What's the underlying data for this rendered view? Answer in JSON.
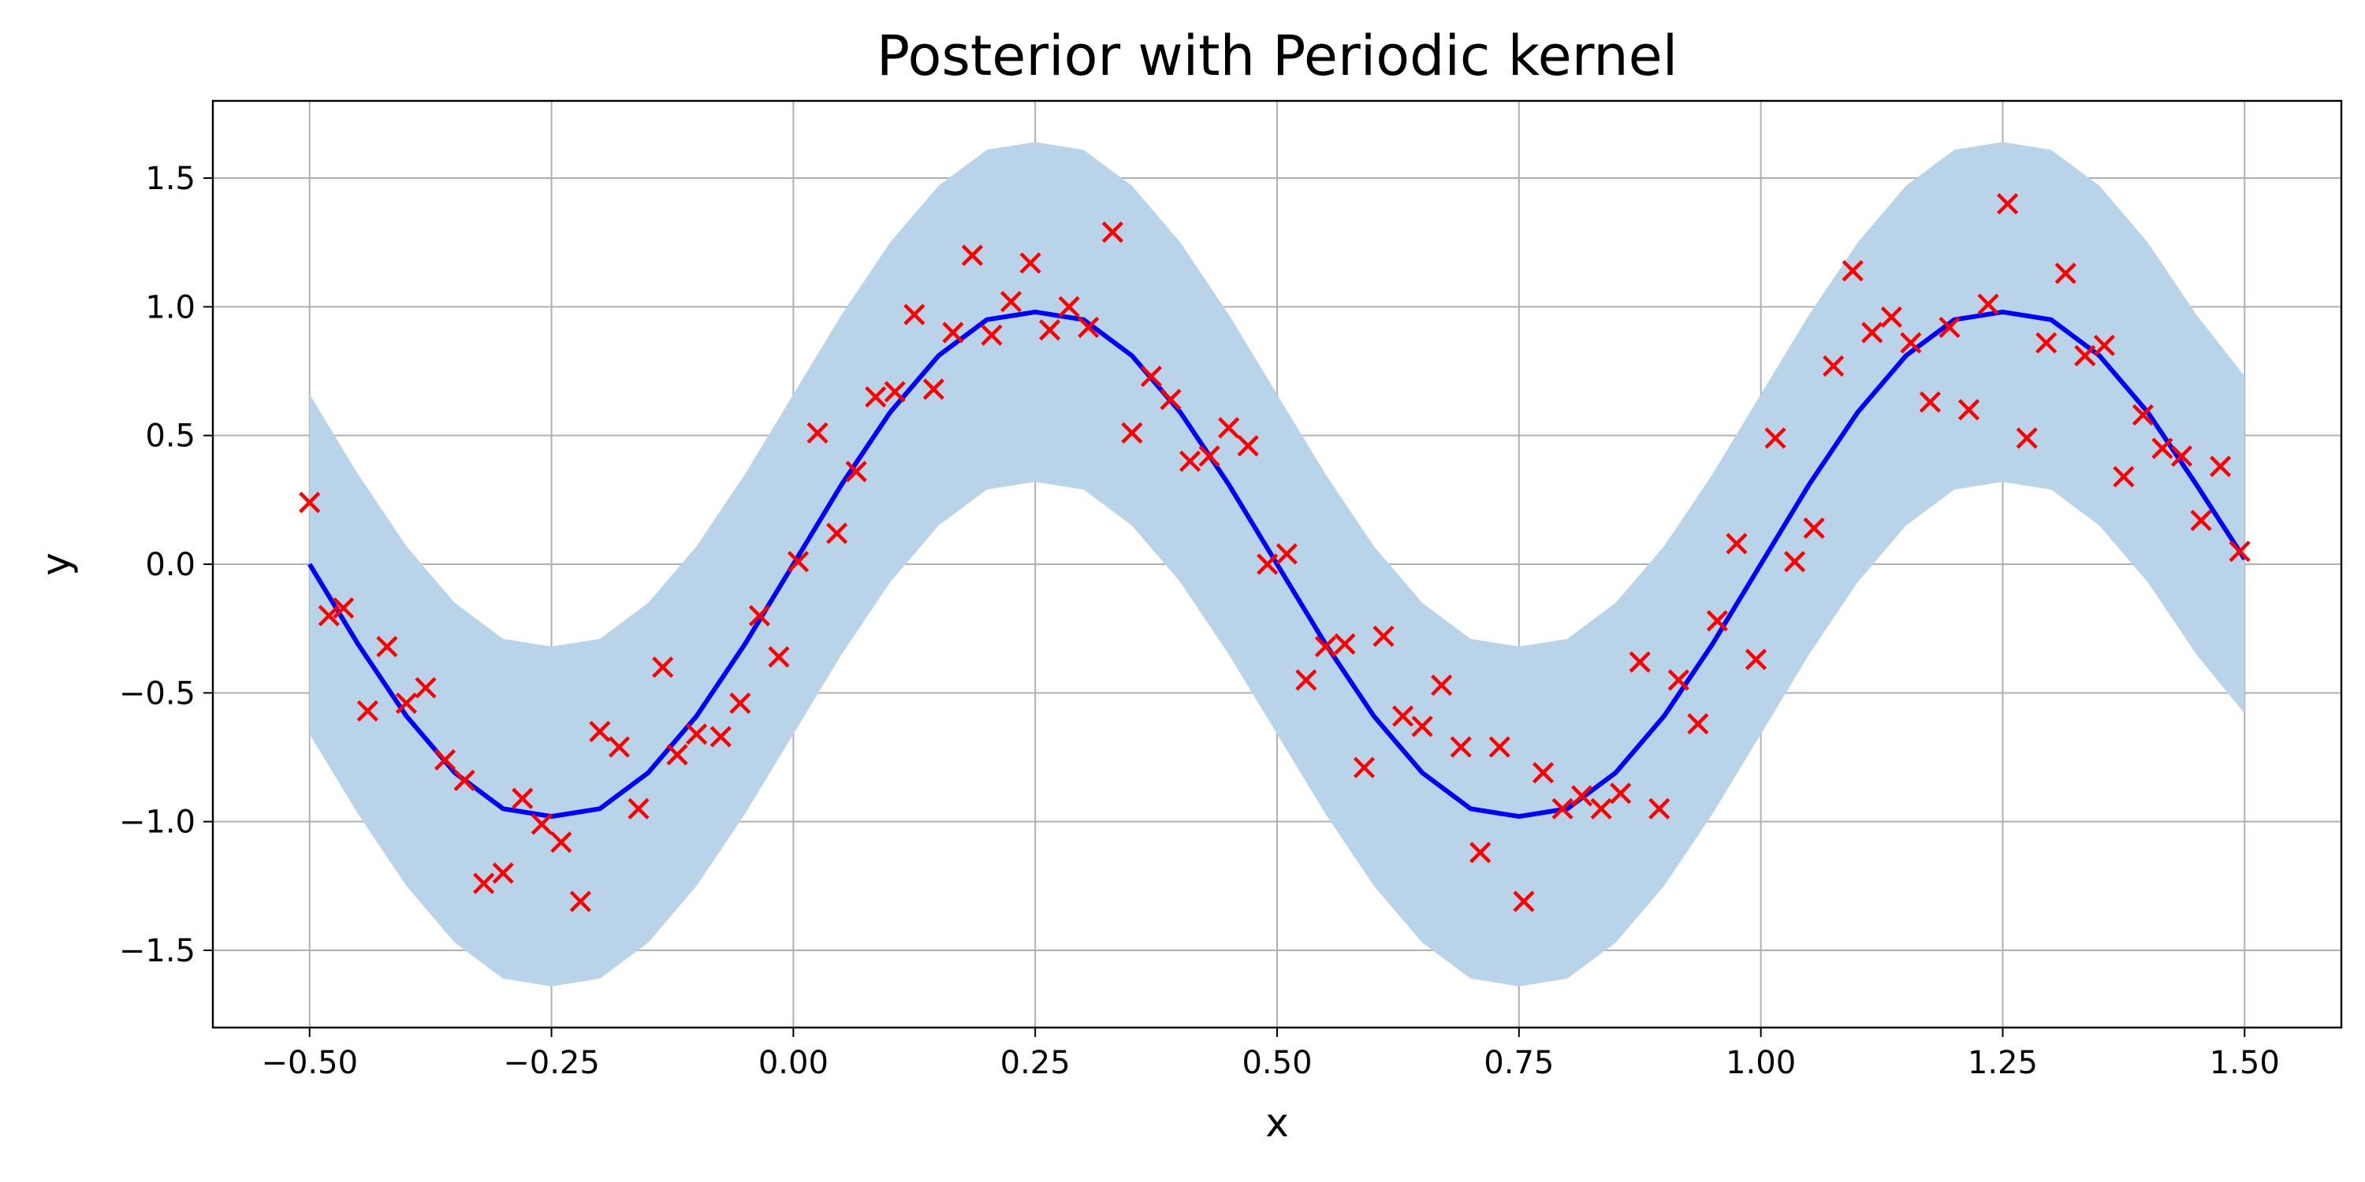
{
  "chart_data": {
    "type": "line",
    "title": "Posterior with Periodic kernel",
    "xlabel": "x",
    "ylabel": "y",
    "xlim": [
      -0.6,
      1.6
    ],
    "ylim": [
      -1.8,
      1.8
    ],
    "xticks": [
      -0.5,
      -0.25,
      0.0,
      0.25,
      0.5,
      0.75,
      1.0,
      1.25,
      1.5
    ],
    "xtick_labels": [
      "−0.50",
      "−0.25",
      "0.00",
      "0.25",
      "0.50",
      "0.75",
      "1.00",
      "1.25",
      "1.50"
    ],
    "yticks": [
      -1.5,
      -1.0,
      -0.5,
      0.0,
      0.5,
      1.0,
      1.5
    ],
    "ytick_labels": [
      "−1.5",
      "−1.0",
      "−0.5",
      "0.0",
      "0.5",
      "1.0",
      "1.5"
    ],
    "grid": true,
    "colors": {
      "mean_line": "#0000ff",
      "band": "#b9d4e8",
      "points": "#ff0000",
      "grid": "#b0b0b0"
    },
    "series": [
      {
        "kind": "line",
        "x": [
          -0.5,
          -0.45,
          -0.4,
          -0.35,
          -0.3,
          -0.25,
          -0.2,
          -0.15,
          -0.1,
          -0.05,
          0.0,
          0.05,
          0.1,
          0.15,
          0.2,
          0.25,
          0.3,
          0.35,
          0.4,
          0.45,
          0.5,
          0.55,
          0.6,
          0.65,
          0.7,
          0.75,
          0.8,
          0.85,
          0.9,
          0.95,
          1.0,
          1.05,
          1.1,
          1.15,
          1.2,
          1.25,
          1.3,
          1.35,
          1.4,
          1.45,
          1.5
        ],
        "y": [
          0.0,
          -0.31,
          -0.59,
          -0.81,
          -0.95,
          -0.98,
          -0.95,
          -0.81,
          -0.59,
          -0.31,
          0.0,
          0.31,
          0.59,
          0.81,
          0.95,
          0.98,
          0.95,
          0.81,
          0.59,
          0.31,
          0.0,
          -0.31,
          -0.59,
          -0.81,
          -0.95,
          -0.98,
          -0.95,
          -0.81,
          -0.59,
          -0.31,
          0.0,
          0.31,
          0.59,
          0.81,
          0.95,
          0.98,
          0.95,
          0.81,
          0.59,
          0.31,
          0.02
        ]
      },
      {
        "kind": "band",
        "x": [
          -0.5,
          -0.45,
          -0.4,
          -0.35,
          -0.3,
          -0.25,
          -0.2,
          -0.15,
          -0.1,
          -0.05,
          0.0,
          0.05,
          0.1,
          0.15,
          0.2,
          0.25,
          0.3,
          0.35,
          0.4,
          0.45,
          0.5,
          0.55,
          0.6,
          0.65,
          0.7,
          0.75,
          0.8,
          0.85,
          0.9,
          0.95,
          1.0,
          1.05,
          1.1,
          1.15,
          1.2,
          1.25,
          1.3,
          1.35,
          1.4,
          1.45,
          1.5
        ],
        "lower": [
          -0.66,
          -0.97,
          -1.25,
          -1.47,
          -1.61,
          -1.64,
          -1.61,
          -1.47,
          -1.25,
          -0.97,
          -0.66,
          -0.35,
          -0.07,
          0.15,
          0.29,
          0.32,
          0.29,
          0.15,
          -0.07,
          -0.35,
          -0.66,
          -0.97,
          -1.25,
          -1.47,
          -1.61,
          -1.64,
          -1.61,
          -1.47,
          -1.25,
          -0.97,
          -0.66,
          -0.35,
          -0.07,
          0.15,
          0.29,
          0.32,
          0.29,
          0.15,
          -0.07,
          -0.35,
          -0.58
        ],
        "upper": [
          0.66,
          0.35,
          0.07,
          -0.15,
          -0.29,
          -0.32,
          -0.29,
          -0.15,
          0.07,
          0.35,
          0.66,
          0.97,
          1.25,
          1.47,
          1.61,
          1.64,
          1.61,
          1.47,
          1.25,
          0.97,
          0.66,
          0.35,
          0.07,
          -0.15,
          -0.29,
          -0.32,
          -0.29,
          -0.15,
          0.07,
          0.35,
          0.66,
          0.97,
          1.25,
          1.47,
          1.61,
          1.64,
          1.61,
          1.47,
          1.25,
          0.97,
          0.73
        ]
      },
      {
        "kind": "scatter",
        "points": [
          [
            -0.5,
            0.24
          ],
          [
            -0.48,
            -0.2
          ],
          [
            -0.465,
            -0.17
          ],
          [
            -0.44,
            -0.57
          ],
          [
            -0.42,
            -0.32
          ],
          [
            -0.4,
            -0.54
          ],
          [
            -0.38,
            -0.48
          ],
          [
            -0.36,
            -0.76
          ],
          [
            -0.34,
            -0.84
          ],
          [
            -0.32,
            -1.24
          ],
          [
            -0.3,
            -1.2
          ],
          [
            -0.28,
            -0.91
          ],
          [
            -0.26,
            -1.01
          ],
          [
            -0.24,
            -1.08
          ],
          [
            -0.22,
            -1.31
          ],
          [
            -0.2,
            -0.65
          ],
          [
            -0.18,
            -0.71
          ],
          [
            -0.16,
            -0.95
          ],
          [
            -0.135,
            -0.4
          ],
          [
            -0.12,
            -0.74
          ],
          [
            -0.1,
            -0.66
          ],
          [
            -0.075,
            -0.67
          ],
          [
            -0.055,
            -0.54
          ],
          [
            -0.035,
            -0.2
          ],
          [
            -0.015,
            -0.36
          ],
          [
            0.005,
            0.01
          ],
          [
            0.025,
            0.51
          ],
          [
            0.045,
            0.12
          ],
          [
            0.065,
            0.36
          ],
          [
            0.085,
            0.65
          ],
          [
            0.105,
            0.67
          ],
          [
            0.125,
            0.97
          ],
          [
            0.145,
            0.68
          ],
          [
            0.165,
            0.9
          ],
          [
            0.185,
            1.2
          ],
          [
            0.205,
            0.89
          ],
          [
            0.225,
            1.02
          ],
          [
            0.245,
            1.17
          ],
          [
            0.265,
            0.91
          ],
          [
            0.285,
            1.0
          ],
          [
            0.305,
            0.92
          ],
          [
            0.33,
            1.29
          ],
          [
            0.35,
            0.51
          ],
          [
            0.37,
            0.73
          ],
          [
            0.39,
            0.64
          ],
          [
            0.41,
            0.4
          ],
          [
            0.43,
            0.42
          ],
          [
            0.45,
            0.53
          ],
          [
            0.47,
            0.46
          ],
          [
            0.49,
            0.0
          ],
          [
            0.51,
            0.04
          ],
          [
            0.53,
            -0.45
          ],
          [
            0.55,
            -0.32
          ],
          [
            0.57,
            -0.31
          ],
          [
            0.59,
            -0.79
          ],
          [
            0.61,
            -0.28
          ],
          [
            0.63,
            -0.59
          ],
          [
            0.65,
            -0.63
          ],
          [
            0.67,
            -0.47
          ],
          [
            0.69,
            -0.71
          ],
          [
            0.71,
            -1.12
          ],
          [
            0.73,
            -0.71
          ],
          [
            0.755,
            -1.31
          ],
          [
            0.775,
            -0.81
          ],
          [
            0.795,
            -0.95
          ],
          [
            0.815,
            -0.9
          ],
          [
            0.835,
            -0.95
          ],
          [
            0.855,
            -0.89
          ],
          [
            0.875,
            -0.38
          ],
          [
            0.895,
            -0.95
          ],
          [
            0.915,
            -0.45
          ],
          [
            0.935,
            -0.62
          ],
          [
            0.955,
            -0.22
          ],
          [
            0.975,
            0.08
          ],
          [
            0.995,
            -0.37
          ],
          [
            1.015,
            0.49
          ],
          [
            1.035,
            0.01
          ],
          [
            1.055,
            0.14
          ],
          [
            1.075,
            0.77
          ],
          [
            1.095,
            1.14
          ],
          [
            1.115,
            0.9
          ],
          [
            1.135,
            0.96
          ],
          [
            1.155,
            0.86
          ],
          [
            1.175,
            0.63
          ],
          [
            1.195,
            0.92
          ],
          [
            1.215,
            0.6
          ],
          [
            1.235,
            1.01
          ],
          [
            1.255,
            1.4
          ],
          [
            1.275,
            0.49
          ],
          [
            1.295,
            0.86
          ],
          [
            1.315,
            1.13
          ],
          [
            1.335,
            0.81
          ],
          [
            1.355,
            0.85
          ],
          [
            1.375,
            0.34
          ],
          [
            1.395,
            0.58
          ],
          [
            1.415,
            0.45
          ],
          [
            1.435,
            0.42
          ],
          [
            1.455,
            0.17
          ],
          [
            1.475,
            0.38
          ],
          [
            1.495,
            0.05
          ]
        ]
      }
    ]
  }
}
